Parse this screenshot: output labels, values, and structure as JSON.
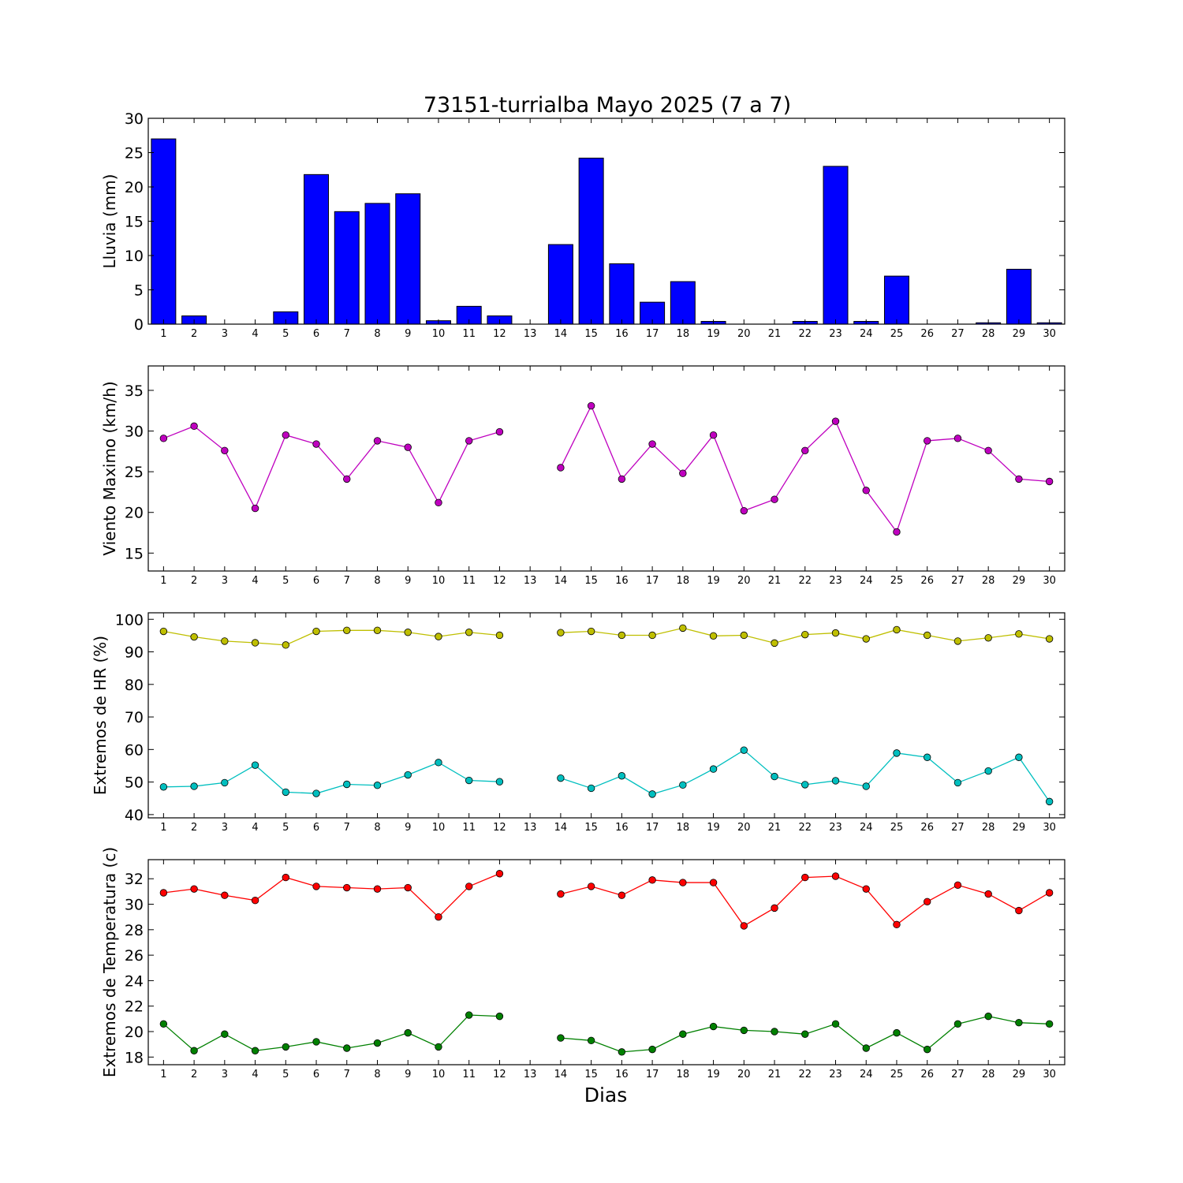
{
  "title": "73151-turrialba Mayo 2025  (7 a 7)",
  "xlabel": "Dias",
  "days": [
    1,
    2,
    3,
    4,
    5,
    6,
    7,
    8,
    9,
    10,
    11,
    12,
    13,
    14,
    15,
    16,
    17,
    18,
    19,
    20,
    21,
    22,
    23,
    24,
    25,
    26,
    27,
    28,
    29,
    30
  ],
  "chart_data": [
    {
      "type": "bar",
      "ylabel": "Lluvia (mm)",
      "ylim": [
        0,
        30
      ],
      "yticks": [
        0,
        5,
        10,
        15,
        20,
        25,
        30
      ],
      "categories": [
        1,
        2,
        3,
        4,
        5,
        6,
        7,
        8,
        9,
        10,
        11,
        12,
        13,
        14,
        15,
        16,
        17,
        18,
        19,
        20,
        21,
        22,
        23,
        24,
        25,
        26,
        27,
        28,
        29,
        30
      ],
      "series": [
        {
          "color": "#0000ff",
          "values": [
            27.0,
            1.2,
            0.0,
            0.0,
            1.8,
            21.8,
            16.4,
            17.6,
            19.0,
            0.5,
            2.6,
            1.2,
            null,
            11.6,
            24.2,
            8.8,
            3.2,
            6.2,
            0.4,
            0.0,
            0.0,
            0.4,
            23.0,
            0.4,
            7.0,
            0.0,
            0.0,
            0.2,
            8.0,
            0.2
          ]
        }
      ]
    },
    {
      "type": "line",
      "ylabel": "Viento Maximo (km/h)",
      "ylim": [
        12.8,
        38
      ],
      "yticks": [
        15,
        20,
        25,
        30,
        35
      ],
      "x": [
        1,
        2,
        3,
        4,
        5,
        6,
        7,
        8,
        9,
        10,
        11,
        12,
        13,
        14,
        15,
        16,
        17,
        18,
        19,
        20,
        21,
        22,
        23,
        24,
        25,
        26,
        27,
        28,
        29,
        30
      ],
      "series": [
        {
          "color": "#bf00bf",
          "values": [
            29.1,
            30.6,
            27.6,
            20.5,
            29.5,
            28.4,
            24.1,
            28.8,
            28.0,
            21.2,
            28.8,
            29.9,
            null,
            25.5,
            33.1,
            24.1,
            28.4,
            24.8,
            29.5,
            20.2,
            21.6,
            27.6,
            31.2,
            22.7,
            17.6,
            28.8,
            29.1,
            27.6,
            24.1,
            23.8
          ]
        }
      ]
    },
    {
      "type": "line",
      "ylabel": "Extremos de HR (%)",
      "ylim": [
        39,
        102
      ],
      "yticks": [
        40,
        50,
        60,
        70,
        80,
        90,
        100
      ],
      "x": [
        1,
        2,
        3,
        4,
        5,
        6,
        7,
        8,
        9,
        10,
        11,
        12,
        13,
        14,
        15,
        16,
        17,
        18,
        19,
        20,
        21,
        22,
        23,
        24,
        25,
        26,
        27,
        28,
        29,
        30
      ],
      "series": [
        {
          "color": "#bfbf00",
          "values": [
            96.3,
            94.6,
            93.3,
            92.8,
            92.1,
            96.3,
            96.6,
            96.6,
            96.0,
            94.7,
            96.0,
            95.1,
            null,
            95.9,
            96.3,
            95.1,
            95.1,
            97.3,
            94.9,
            95.1,
            92.7,
            95.3,
            95.8,
            94.0,
            96.8,
            95.1,
            93.3,
            94.3,
            95.5,
            94.0
          ]
        },
        {
          "color": "#00bfbf",
          "values": [
            48.5,
            48.7,
            49.8,
            55.2,
            46.9,
            46.5,
            49.3,
            49.0,
            52.2,
            56.0,
            50.5,
            50.1,
            null,
            51.2,
            48.1,
            51.9,
            46.3,
            49.1,
            54.0,
            59.8,
            51.7,
            49.2,
            50.4,
            48.7,
            58.9,
            57.6,
            49.8,
            53.4,
            57.6,
            44.0
          ]
        }
      ]
    },
    {
      "type": "line",
      "ylabel": "Extremos de Temperatura (c)",
      "ylim": [
        17.4,
        33.5
      ],
      "yticks": [
        18,
        20,
        22,
        24,
        26,
        28,
        30,
        32
      ],
      "x": [
        1,
        2,
        3,
        4,
        5,
        6,
        7,
        8,
        9,
        10,
        11,
        12,
        13,
        14,
        15,
        16,
        17,
        18,
        19,
        20,
        21,
        22,
        23,
        24,
        25,
        26,
        27,
        28,
        29,
        30
      ],
      "series": [
        {
          "color": "#ff0000",
          "values": [
            30.9,
            31.2,
            30.7,
            30.3,
            32.1,
            31.4,
            31.3,
            31.2,
            31.3,
            29.0,
            31.4,
            32.4,
            null,
            30.8,
            31.4,
            30.7,
            31.9,
            31.7,
            31.7,
            28.3,
            29.7,
            32.1,
            32.2,
            31.2,
            28.4,
            30.2,
            31.5,
            30.8,
            29.5,
            30.9
          ]
        },
        {
          "color": "#008000",
          "values": [
            20.6,
            18.5,
            19.8,
            18.5,
            18.8,
            19.2,
            18.7,
            19.1,
            19.9,
            18.8,
            21.3,
            21.2,
            null,
            19.5,
            19.3,
            18.4,
            18.6,
            19.8,
            20.4,
            20.1,
            20.0,
            19.8,
            20.6,
            18.7,
            19.9,
            18.6,
            20.6,
            21.2,
            20.7,
            20.6
          ]
        }
      ]
    }
  ]
}
